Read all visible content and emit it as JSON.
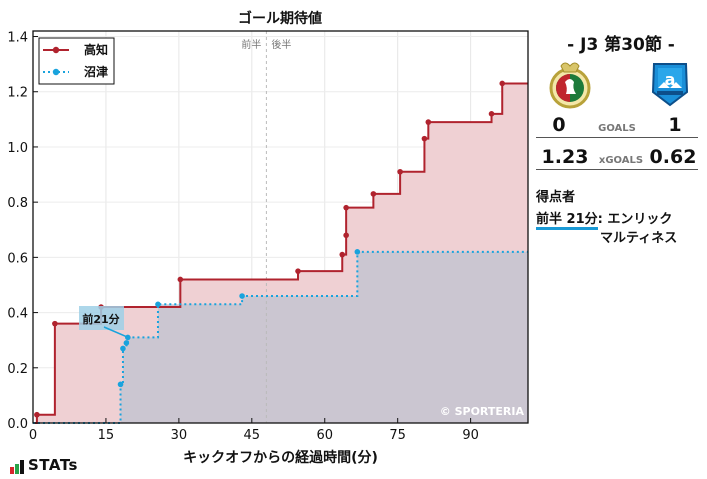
{
  "chart_data": {
    "type": "line",
    "subtype": "step",
    "title": "ゴール期待値",
    "xlabel": "キックオフからの経過時間(分)",
    "ylabel": "",
    "xlim": [
      0,
      101.8
    ],
    "ylim": [
      0,
      1.42
    ],
    "xticks": [
      0,
      15,
      30,
      45,
      60,
      75,
      90
    ],
    "yticks": [
      0.0,
      0.2,
      0.4,
      0.6,
      0.8,
      1.0,
      1.2,
      1.4
    ],
    "grid": true,
    "legend_position": "upper left",
    "halftime_minute": 48,
    "halftime_labels": [
      "前半",
      "後半"
    ],
    "series": [
      {
        "name": "高知",
        "color": "#b0232e",
        "style": "solid",
        "fill": "#efd0d3",
        "x": [
          0.8,
          4.5,
          14.0,
          30.3,
          54.5,
          63.6,
          64.4,
          64.4,
          70.0,
          75.5,
          80.5,
          81.3,
          94.3,
          96.5
        ],
        "y": [
          0.03,
          0.36,
          0.42,
          0.52,
          0.55,
          0.61,
          0.68,
          0.78,
          0.83,
          0.91,
          1.03,
          1.09,
          1.12,
          1.23
        ]
      },
      {
        "name": "沼津",
        "color": "#19a3dd",
        "style": "dotted",
        "fill": "#c6c4d0",
        "x": [
          18.0,
          18.5,
          19.2,
          19.5,
          25.7,
          43.0,
          66.7
        ],
        "y": [
          0.14,
          0.27,
          0.29,
          0.31,
          0.43,
          0.46,
          0.62
        ]
      }
    ],
    "annotations": [
      {
        "text": "前21分",
        "x": 20,
        "y": 0.31,
        "series": "沼津"
      }
    ]
  },
  "chart": {
    "title": "ゴール期待値",
    "xlabel": "キックオフからの経過時間(分)",
    "first_half": "前半",
    "second_half": "後半",
    "watermark": "© SPORTERIA",
    "legend": [
      {
        "label": "高知"
      },
      {
        "label": "沼津"
      }
    ],
    "annotation": "前21分"
  },
  "match": {
    "round": "-  J3 第30節  -",
    "home": {
      "name": "高知",
      "goals": "0",
      "xg": "1.23",
      "color": "#b0232e"
    },
    "away": {
      "name": "沼津",
      "goals": "1",
      "xg": "0.62",
      "color": "#19a3dd"
    },
    "goals_label": "GOALS",
    "xgoals_label": "xGOALS"
  },
  "scorers": {
    "title": "得点者",
    "items": [
      {
        "time": "前半 21分",
        "sep": ":",
        "name_line1": "エンリック",
        "name_line2": "マルティネス"
      }
    ]
  },
  "brand": {
    "logo_text": "STATs"
  }
}
